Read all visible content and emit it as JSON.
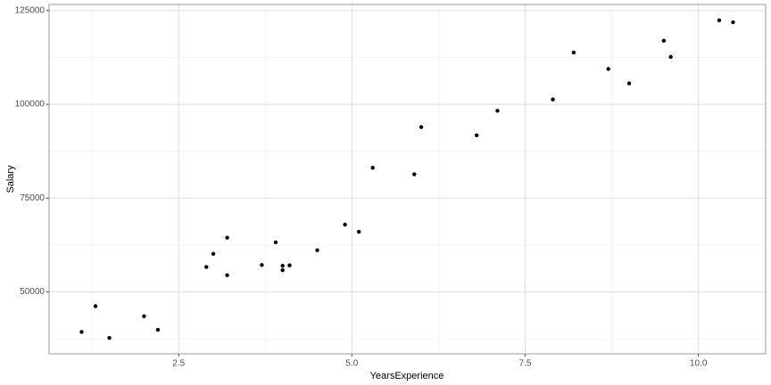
{
  "chart_data": {
    "type": "scatter",
    "x_label": "YearsExperience",
    "y_label": "Salary",
    "color": "#000000",
    "x": [
      1.1,
      1.3,
      1.5,
      2.0,
      2.2,
      2.9,
      3.0,
      3.2,
      3.2,
      3.7,
      3.9,
      4.0,
      4.0,
      4.1,
      4.5,
      4.9,
      5.1,
      5.3,
      5.9,
      6.0,
      6.8,
      7.1,
      7.9,
      8.2,
      8.7,
      9.0,
      9.5,
      9.6,
      10.3,
      10.5
    ],
    "values": [
      39343,
      46205,
      37731,
      43525,
      39891,
      56642,
      60150,
      54445,
      64445,
      57189,
      63218,
      55794,
      56957,
      57081,
      61111,
      67938,
      66029,
      83088,
      81363,
      93940,
      91738,
      98273,
      101302,
      113812,
      109431,
      105582,
      116969,
      112635,
      122391,
      121872
    ],
    "xlim": [
      0.63,
      10.97
    ],
    "ylim": [
      33498,
      126624
    ],
    "xticks": [
      2.5,
      {
        "value": 5,
        "label": "5.0"
      },
      7.5,
      {
        "value": 10,
        "label": "10.0"
      }
    ],
    "yticks": [
      50000,
      75000,
      100000,
      125000
    ],
    "x_minor_ticks": [
      1.25,
      3.75,
      6.25,
      8.75
    ],
    "y_minor_ticks": [
      37500,
      62500,
      87500,
      112500
    ],
    "grid": true
  }
}
